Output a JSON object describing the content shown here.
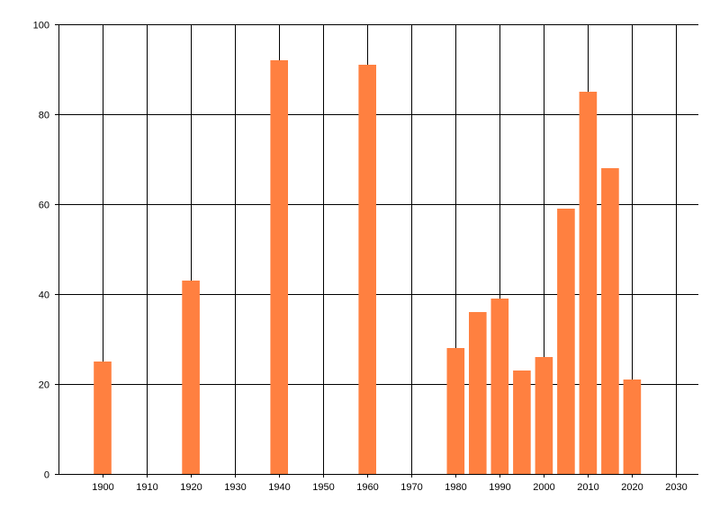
{
  "chart_data": {
    "type": "bar",
    "title": "",
    "xlabel": "",
    "ylabel": "",
    "xlim": [
      1890,
      2035
    ],
    "ylim": [
      0,
      100
    ],
    "x_ticks": [
      1900,
      1910,
      1920,
      1930,
      1940,
      1950,
      1960,
      1970,
      1980,
      1990,
      2000,
      2010,
      2020,
      2030
    ],
    "y_ticks": [
      0,
      20,
      40,
      60,
      80,
      100
    ],
    "grid": true,
    "legend": "none",
    "bar_color": "#ff8040",
    "x": [
      1900,
      1920,
      1940,
      1960,
      1980,
      1985,
      1990,
      1995,
      2000,
      2005,
      2010,
      2015,
      2020
    ],
    "values": [
      25,
      43,
      92,
      91,
      28,
      36,
      39,
      23,
      26,
      59,
      85,
      68,
      21
    ]
  }
}
